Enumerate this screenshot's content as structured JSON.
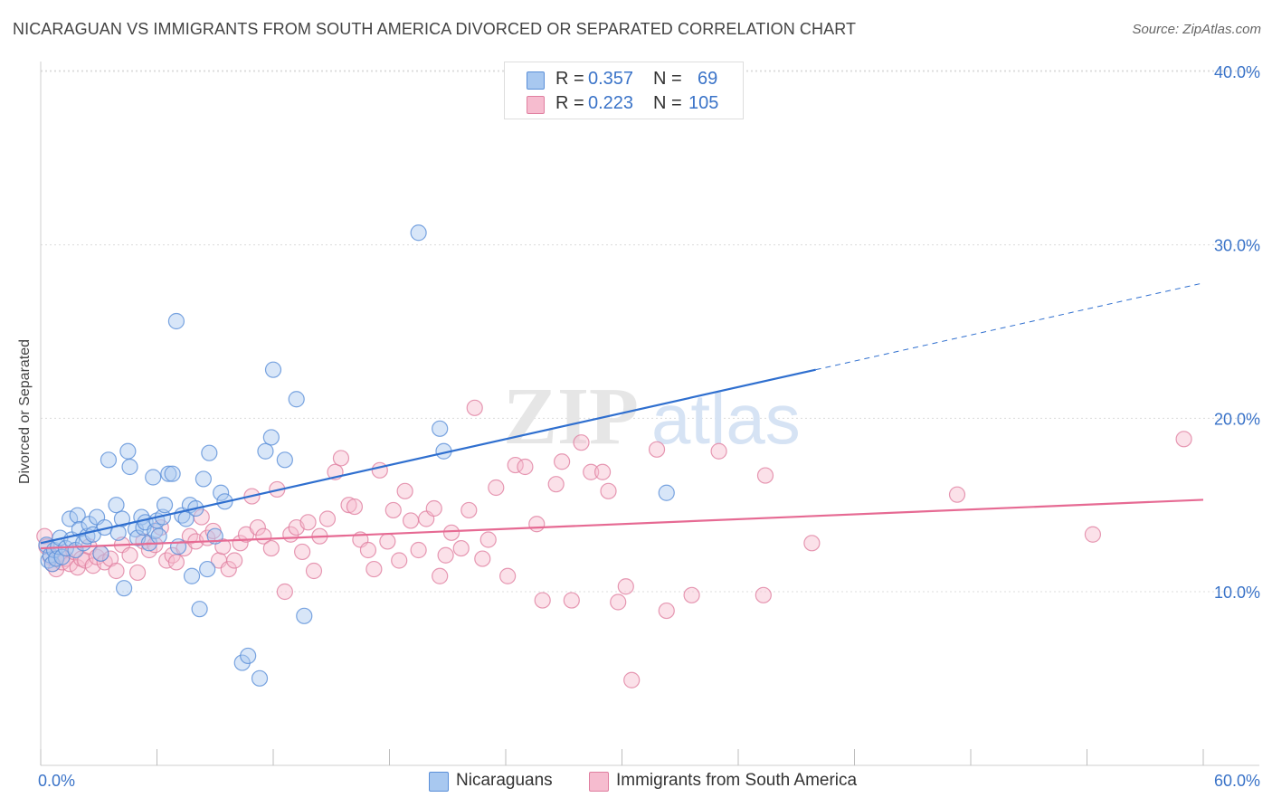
{
  "header": {
    "title": "NICARAGUAN VS IMMIGRANTS FROM SOUTH AMERICA DIVORCED OR SEPARATED CORRELATION CHART",
    "source": "Source: ZipAtlas.com"
  },
  "watermark": {
    "zip": "ZIP",
    "atlas": "atlas"
  },
  "legend": {
    "series": [
      {
        "r_label": "R =",
        "r_value": "0.357",
        "n_label": "N =",
        "n_value": "69",
        "color": "#a8c8f0",
        "edge": "#5a8fd8"
      },
      {
        "r_label": "R =",
        "r_value": "0.223",
        "n_label": "N =",
        "n_value": "105",
        "color": "#f6bccf",
        "edge": "#e07fa0"
      }
    ],
    "bottom": [
      "Nicaraguans",
      "Immigrants from South America"
    ]
  },
  "chart_data": {
    "type": "scatter",
    "title": "NICARAGUAN VS IMMIGRANTS FROM SOUTH AMERICA DIVORCED OR SEPARATED CORRELATION CHART",
    "xlabel": "",
    "ylabel": "Divorced or Separated",
    "xlim": [
      0,
      60
    ],
    "ylim": [
      0,
      42
    ],
    "x_tick_labels": [
      "0.0%",
      "60.0%"
    ],
    "y_ticks": [
      10,
      20,
      30,
      40
    ],
    "y_tick_labels": [
      "10.0%",
      "20.0%",
      "30.0%",
      "40.0%"
    ],
    "grid": true,
    "legend_position": "top-center",
    "series": [
      {
        "name": "Nicaraguans",
        "color": "#a8c8f0",
        "edge": "#5a8fd8",
        "line_color": "#2f6fcf",
        "trend": {
          "x0": 0,
          "y0": 12.8,
          "x1": 40,
          "y1": 22.8,
          "dashed_to_x": 60,
          "dashed_to_y": 27.8
        },
        "points": [
          [
            0.3,
            12.7
          ],
          [
            0.4,
            11.8
          ],
          [
            0.5,
            12.1
          ],
          [
            0.6,
            11.6
          ],
          [
            0.7,
            12.4
          ],
          [
            0.8,
            11.9
          ],
          [
            0.9,
            12.6
          ],
          [
            1.0,
            13.1
          ],
          [
            1.1,
            12.0
          ],
          [
            1.3,
            12.5
          ],
          [
            1.5,
            14.2
          ],
          [
            1.6,
            13.0
          ],
          [
            1.8,
            12.4
          ],
          [
            1.9,
            14.4
          ],
          [
            2.0,
            13.6
          ],
          [
            2.2,
            12.8
          ],
          [
            2.4,
            13.2
          ],
          [
            2.5,
            13.9
          ],
          [
            2.7,
            13.3
          ],
          [
            2.9,
            14.3
          ],
          [
            3.1,
            12.2
          ],
          [
            3.3,
            13.7
          ],
          [
            3.5,
            17.6
          ],
          [
            3.9,
            15.0
          ],
          [
            4.0,
            13.4
          ],
          [
            4.2,
            14.2
          ],
          [
            4.3,
            10.2
          ],
          [
            4.5,
            18.1
          ],
          [
            4.6,
            17.2
          ],
          [
            4.9,
            13.6
          ],
          [
            5.0,
            13.1
          ],
          [
            5.2,
            14.3
          ],
          [
            5.3,
            13.7
          ],
          [
            5.4,
            14.0
          ],
          [
            5.6,
            12.8
          ],
          [
            5.8,
            16.6
          ],
          [
            5.9,
            13.5
          ],
          [
            6.0,
            14.1
          ],
          [
            6.1,
            13.2
          ],
          [
            6.3,
            14.3
          ],
          [
            6.4,
            15.0
          ],
          [
            6.6,
            16.8
          ],
          [
            6.8,
            16.8
          ],
          [
            7.0,
            25.6
          ],
          [
            7.1,
            12.6
          ],
          [
            7.3,
            14.4
          ],
          [
            7.5,
            14.2
          ],
          [
            7.7,
            15.0
          ],
          [
            7.8,
            10.9
          ],
          [
            8.0,
            14.8
          ],
          [
            8.2,
            9.0
          ],
          [
            8.4,
            16.5
          ],
          [
            8.6,
            11.3
          ],
          [
            8.7,
            18.0
          ],
          [
            9.0,
            13.2
          ],
          [
            9.3,
            15.7
          ],
          [
            9.5,
            15.2
          ],
          [
            10.4,
            5.9
          ],
          [
            10.7,
            6.3
          ],
          [
            11.3,
            5.0
          ],
          [
            11.6,
            18.1
          ],
          [
            11.9,
            18.9
          ],
          [
            12.0,
            22.8
          ],
          [
            12.6,
            17.6
          ],
          [
            13.2,
            21.1
          ],
          [
            13.6,
            8.6
          ],
          [
            19.5,
            30.7
          ],
          [
            20.6,
            19.4
          ],
          [
            20.8,
            18.1
          ],
          [
            32.3,
            15.7
          ]
        ]
      },
      {
        "name": "Immigrants from South America",
        "color": "#f6bccf",
        "edge": "#e07fa0",
        "line_color": "#e66a93",
        "trend": {
          "x0": 0,
          "y0": 12.5,
          "x1": 60,
          "y1": 15.3
        },
        "points": [
          [
            0.2,
            13.2
          ],
          [
            0.3,
            12.6
          ],
          [
            0.5,
            12.0
          ],
          [
            0.6,
            11.6
          ],
          [
            0.8,
            11.3
          ],
          [
            1.0,
            12.2
          ],
          [
            1.1,
            11.7
          ],
          [
            1.3,
            11.9
          ],
          [
            1.5,
            11.6
          ],
          [
            1.7,
            12.3
          ],
          [
            1.9,
            11.4
          ],
          [
            2.1,
            11.9
          ],
          [
            2.3,
            11.8
          ],
          [
            2.5,
            12.6
          ],
          [
            2.7,
            11.5
          ],
          [
            2.9,
            12.0
          ],
          [
            3.1,
            12.2
          ],
          [
            3.3,
            11.7
          ],
          [
            3.6,
            11.9
          ],
          [
            3.9,
            11.2
          ],
          [
            4.2,
            12.7
          ],
          [
            4.6,
            12.1
          ],
          [
            5.0,
            11.1
          ],
          [
            5.3,
            12.9
          ],
          [
            5.6,
            12.4
          ],
          [
            5.9,
            12.7
          ],
          [
            6.2,
            13.7
          ],
          [
            6.5,
            11.8
          ],
          [
            6.8,
            12.1
          ],
          [
            7.0,
            11.7
          ],
          [
            7.4,
            12.5
          ],
          [
            7.7,
            13.2
          ],
          [
            8.0,
            12.9
          ],
          [
            8.3,
            14.3
          ],
          [
            8.6,
            13.1
          ],
          [
            8.9,
            13.5
          ],
          [
            9.2,
            11.8
          ],
          [
            9.4,
            12.6
          ],
          [
            9.7,
            11.3
          ],
          [
            10.0,
            11.8
          ],
          [
            10.3,
            12.8
          ],
          [
            10.6,
            13.3
          ],
          [
            10.9,
            15.5
          ],
          [
            11.2,
            13.7
          ],
          [
            11.5,
            13.2
          ],
          [
            11.9,
            12.5
          ],
          [
            12.2,
            15.9
          ],
          [
            12.6,
            10.0
          ],
          [
            12.9,
            13.3
          ],
          [
            13.2,
            13.7
          ],
          [
            13.5,
            12.3
          ],
          [
            13.8,
            14.0
          ],
          [
            14.1,
            11.2
          ],
          [
            14.4,
            13.2
          ],
          [
            14.8,
            14.2
          ],
          [
            15.2,
            16.9
          ],
          [
            15.5,
            17.7
          ],
          [
            15.9,
            15.0
          ],
          [
            16.2,
            14.9
          ],
          [
            16.5,
            13.0
          ],
          [
            16.9,
            12.4
          ],
          [
            17.2,
            11.3
          ],
          [
            17.5,
            17.0
          ],
          [
            17.9,
            12.9
          ],
          [
            18.2,
            14.7
          ],
          [
            18.5,
            11.8
          ],
          [
            18.8,
            15.8
          ],
          [
            19.1,
            14.1
          ],
          [
            19.5,
            12.4
          ],
          [
            19.9,
            14.2
          ],
          [
            20.3,
            14.8
          ],
          [
            20.6,
            10.9
          ],
          [
            20.9,
            12.1
          ],
          [
            21.2,
            13.4
          ],
          [
            21.7,
            12.5
          ],
          [
            22.1,
            14.7
          ],
          [
            22.4,
            20.6
          ],
          [
            22.8,
            11.9
          ],
          [
            23.1,
            13.0
          ],
          [
            23.5,
            16.0
          ],
          [
            24.1,
            10.9
          ],
          [
            24.5,
            17.3
          ],
          [
            25.0,
            17.2
          ],
          [
            25.6,
            13.9
          ],
          [
            25.9,
            9.5
          ],
          [
            26.6,
            16.2
          ],
          [
            26.9,
            17.5
          ],
          [
            27.4,
            9.5
          ],
          [
            27.9,
            18.6
          ],
          [
            28.4,
            16.9
          ],
          [
            29.0,
            16.9
          ],
          [
            29.3,
            15.8
          ],
          [
            29.8,
            9.4
          ],
          [
            30.2,
            10.3
          ],
          [
            30.5,
            4.9
          ],
          [
            31.8,
            18.2
          ],
          [
            32.3,
            8.9
          ],
          [
            33.6,
            9.8
          ],
          [
            35.0,
            18.1
          ],
          [
            37.4,
            16.7
          ],
          [
            37.3,
            9.8
          ],
          [
            39.8,
            12.8
          ],
          [
            47.3,
            15.6
          ],
          [
            54.3,
            13.3
          ],
          [
            59.0,
            18.8
          ]
        ]
      }
    ]
  }
}
